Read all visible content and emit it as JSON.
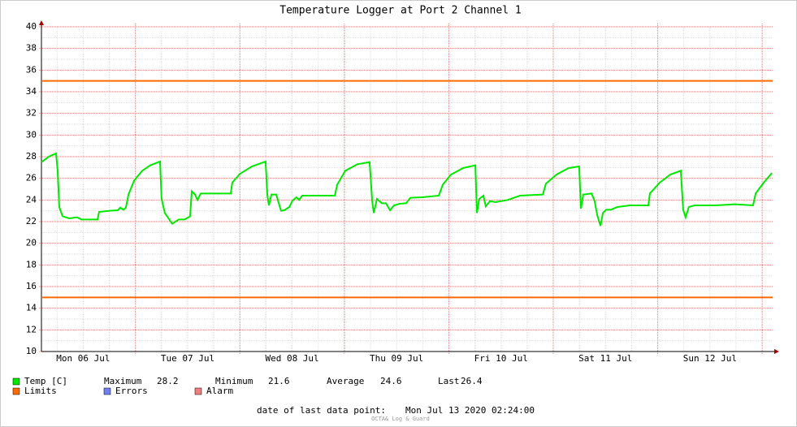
{
  "chart_data": {
    "type": "line",
    "title": "Temperature Logger at Port 2 Channel 1",
    "xlim": [
      2.4,
      170.4
    ],
    "ylim": [
      10,
      40
    ],
    "yticks": [
      10,
      12,
      14,
      16,
      18,
      20,
      22,
      24,
      26,
      28,
      30,
      32,
      34,
      36,
      38,
      40
    ],
    "xticks": [
      {
        "value": 12,
        "label": "Mon 06 Jul"
      },
      {
        "value": 36,
        "label": "Tue 07 Jul"
      },
      {
        "value": 60,
        "label": "Wed 08 Jul"
      },
      {
        "value": 84,
        "label": "Thu 09 Jul"
      },
      {
        "value": 108,
        "label": "Fri 10 Jul"
      },
      {
        "value": 132,
        "label": "Sat 11 Jul"
      },
      {
        "value": 156,
        "label": "Sun 12 Jul"
      }
    ],
    "x_major_grid": [
      24,
      48,
      72,
      96,
      120,
      144,
      168
    ],
    "grid": true,
    "series": [
      {
        "name": "Temp [C]",
        "color": "#00e800",
        "x": [
          2.4,
          4.08,
          5.76,
          6.13,
          6.5,
          7.25,
          8.75,
          10.6,
          11.55,
          13.4,
          15.3,
          15.65,
          18.1,
          19.95,
          20.5,
          21.25,
          21.8,
          22.4,
          23.7,
          25.55,
          27.4,
          29.65,
          30.0,
          30.75,
          32.45,
          33.95,
          35.25,
          36.2,
          36.55,
          36.95,
          37.7,
          38.25,
          39.0,
          40.5,
          42.35,
          45.9,
          46.25,
          47.95,
          50.75,
          53.9,
          54.3,
          54.65,
          55.25,
          56.35,
          57.45,
          58.2,
          59.35,
          60.1,
          61.0,
          61.6,
          62.3,
          63.8,
          67.55,
          69.8,
          70.35,
          72.2,
          75.0,
          77.8,
          78.4,
          78.75,
          79.5,
          80.6,
          81.55,
          82.5,
          83.4,
          84.7,
          86.2,
          87.15,
          89.95,
          93.7,
          94.6,
          96.5,
          99.3,
          102.1,
          102.45,
          103.0,
          103.95,
          104.5,
          105.45,
          106.75,
          109.55,
          112.35,
          117.6,
          118.3,
          120.75,
          123.55,
          125.95,
          126.35,
          126.9,
          128.8,
          129.5,
          130.1,
          130.85,
          131.4,
          132.15,
          133.25,
          134.75,
          137.55,
          141.85,
          142.2,
          144.45,
          146.9,
          149.3,
          149.85,
          150.4,
          151.15,
          152.45,
          157.15,
          161.8,
          165.9,
          166.5,
          168.35,
          170.25
        ],
        "values": [
          27.5,
          28.0,
          28.3,
          26.7,
          23.35,
          22.5,
          22.3,
          22.4,
          22.2,
          22.2,
          22.2,
          22.9,
          23.0,
          23.05,
          23.3,
          23.1,
          23.3,
          24.5,
          25.8,
          26.7,
          27.2,
          27.55,
          24.1,
          22.8,
          21.8,
          22.2,
          22.2,
          22.4,
          22.5,
          24.8,
          24.5,
          24.0,
          24.6,
          24.6,
          24.6,
          24.6,
          25.6,
          26.4,
          27.1,
          27.55,
          24.5,
          23.5,
          24.5,
          24.5,
          23.0,
          23.05,
          23.35,
          23.95,
          24.25,
          24.0,
          24.4,
          24.4,
          24.4,
          24.4,
          25.4,
          26.7,
          27.3,
          27.5,
          23.9,
          22.8,
          24.1,
          23.7,
          23.7,
          23.05,
          23.5,
          23.65,
          23.7,
          24.2,
          24.25,
          24.4,
          25.4,
          26.35,
          26.95,
          27.2,
          22.8,
          24.1,
          24.4,
          23.4,
          23.9,
          23.8,
          24.0,
          24.4,
          24.5,
          25.5,
          26.35,
          26.95,
          27.1,
          23.2,
          24.5,
          24.6,
          23.9,
          22.6,
          21.6,
          22.8,
          23.1,
          23.1,
          23.35,
          23.5,
          23.5,
          24.6,
          25.6,
          26.35,
          26.7,
          23.1,
          22.4,
          23.35,
          23.5,
          23.5,
          23.6,
          23.5,
          24.6,
          25.6,
          26.5
        ]
      }
    ],
    "limits": {
      "name": "Limits",
      "color": "#ff6a00",
      "values": [
        35,
        15
      ]
    },
    "legend_extra": [
      {
        "name": "Errors",
        "color": "#7080f0"
      },
      {
        "name": "Alarm",
        "color": "#f08080"
      }
    ],
    "stats": [
      {
        "label": "Maximum",
        "value": 28.2
      },
      {
        "label": "Minimum",
        "value": 21.6
      },
      {
        "label": "Average",
        "value": 24.6
      },
      {
        "label": "Last",
        "value": 26.4
      }
    ],
    "last_point_label": "date of last data point:",
    "last_point": "Mon Jul 13 2020 02:24:00",
    "watermark": "OCTA& Log & Guard"
  }
}
